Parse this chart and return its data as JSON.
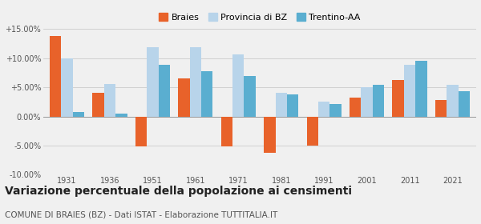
{
  "years": [
    1931,
    1936,
    1951,
    1961,
    1971,
    1981,
    1991,
    2001,
    2011,
    2021
  ],
  "braies": [
    13.8,
    4.0,
    -5.1,
    6.5,
    -5.2,
    -6.3,
    -5.0,
    3.3,
    6.2,
    2.8
  ],
  "provincia_bz": [
    10.0,
    5.6,
    11.9,
    11.9,
    10.7,
    4.0,
    2.5,
    5.0,
    8.9,
    5.4
  ],
  "trentino_aa": [
    0.8,
    0.5,
    8.9,
    7.8,
    7.0,
    3.8,
    2.1,
    5.5,
    9.5,
    4.3
  ],
  "color_braies": "#e8622a",
  "color_provincia": "#b8d4ea",
  "color_trentino": "#5aaed0",
  "title": "Variazione percentuale della popolazione ai censimenti",
  "subtitle": "COMUNE DI BRAIES (BZ) - Dati ISTAT - Elaborazione TUTTITALIA.IT",
  "ylim": [
    -10.0,
    15.0
  ],
  "yticks": [
    -10.0,
    -5.0,
    0.0,
    5.0,
    10.0,
    15.0
  ],
  "ytick_labels": [
    "-10.00%",
    "-5.00%",
    "0.00%",
    "+5.00%",
    "+10.00%",
    "+15.00%"
  ],
  "legend_labels": [
    "Braies",
    "Provincia di BZ",
    "Trentino-AA"
  ],
  "background_color": "#f0f0f0",
  "bar_width": 0.27,
  "title_fontsize": 10,
  "subtitle_fontsize": 7.5
}
